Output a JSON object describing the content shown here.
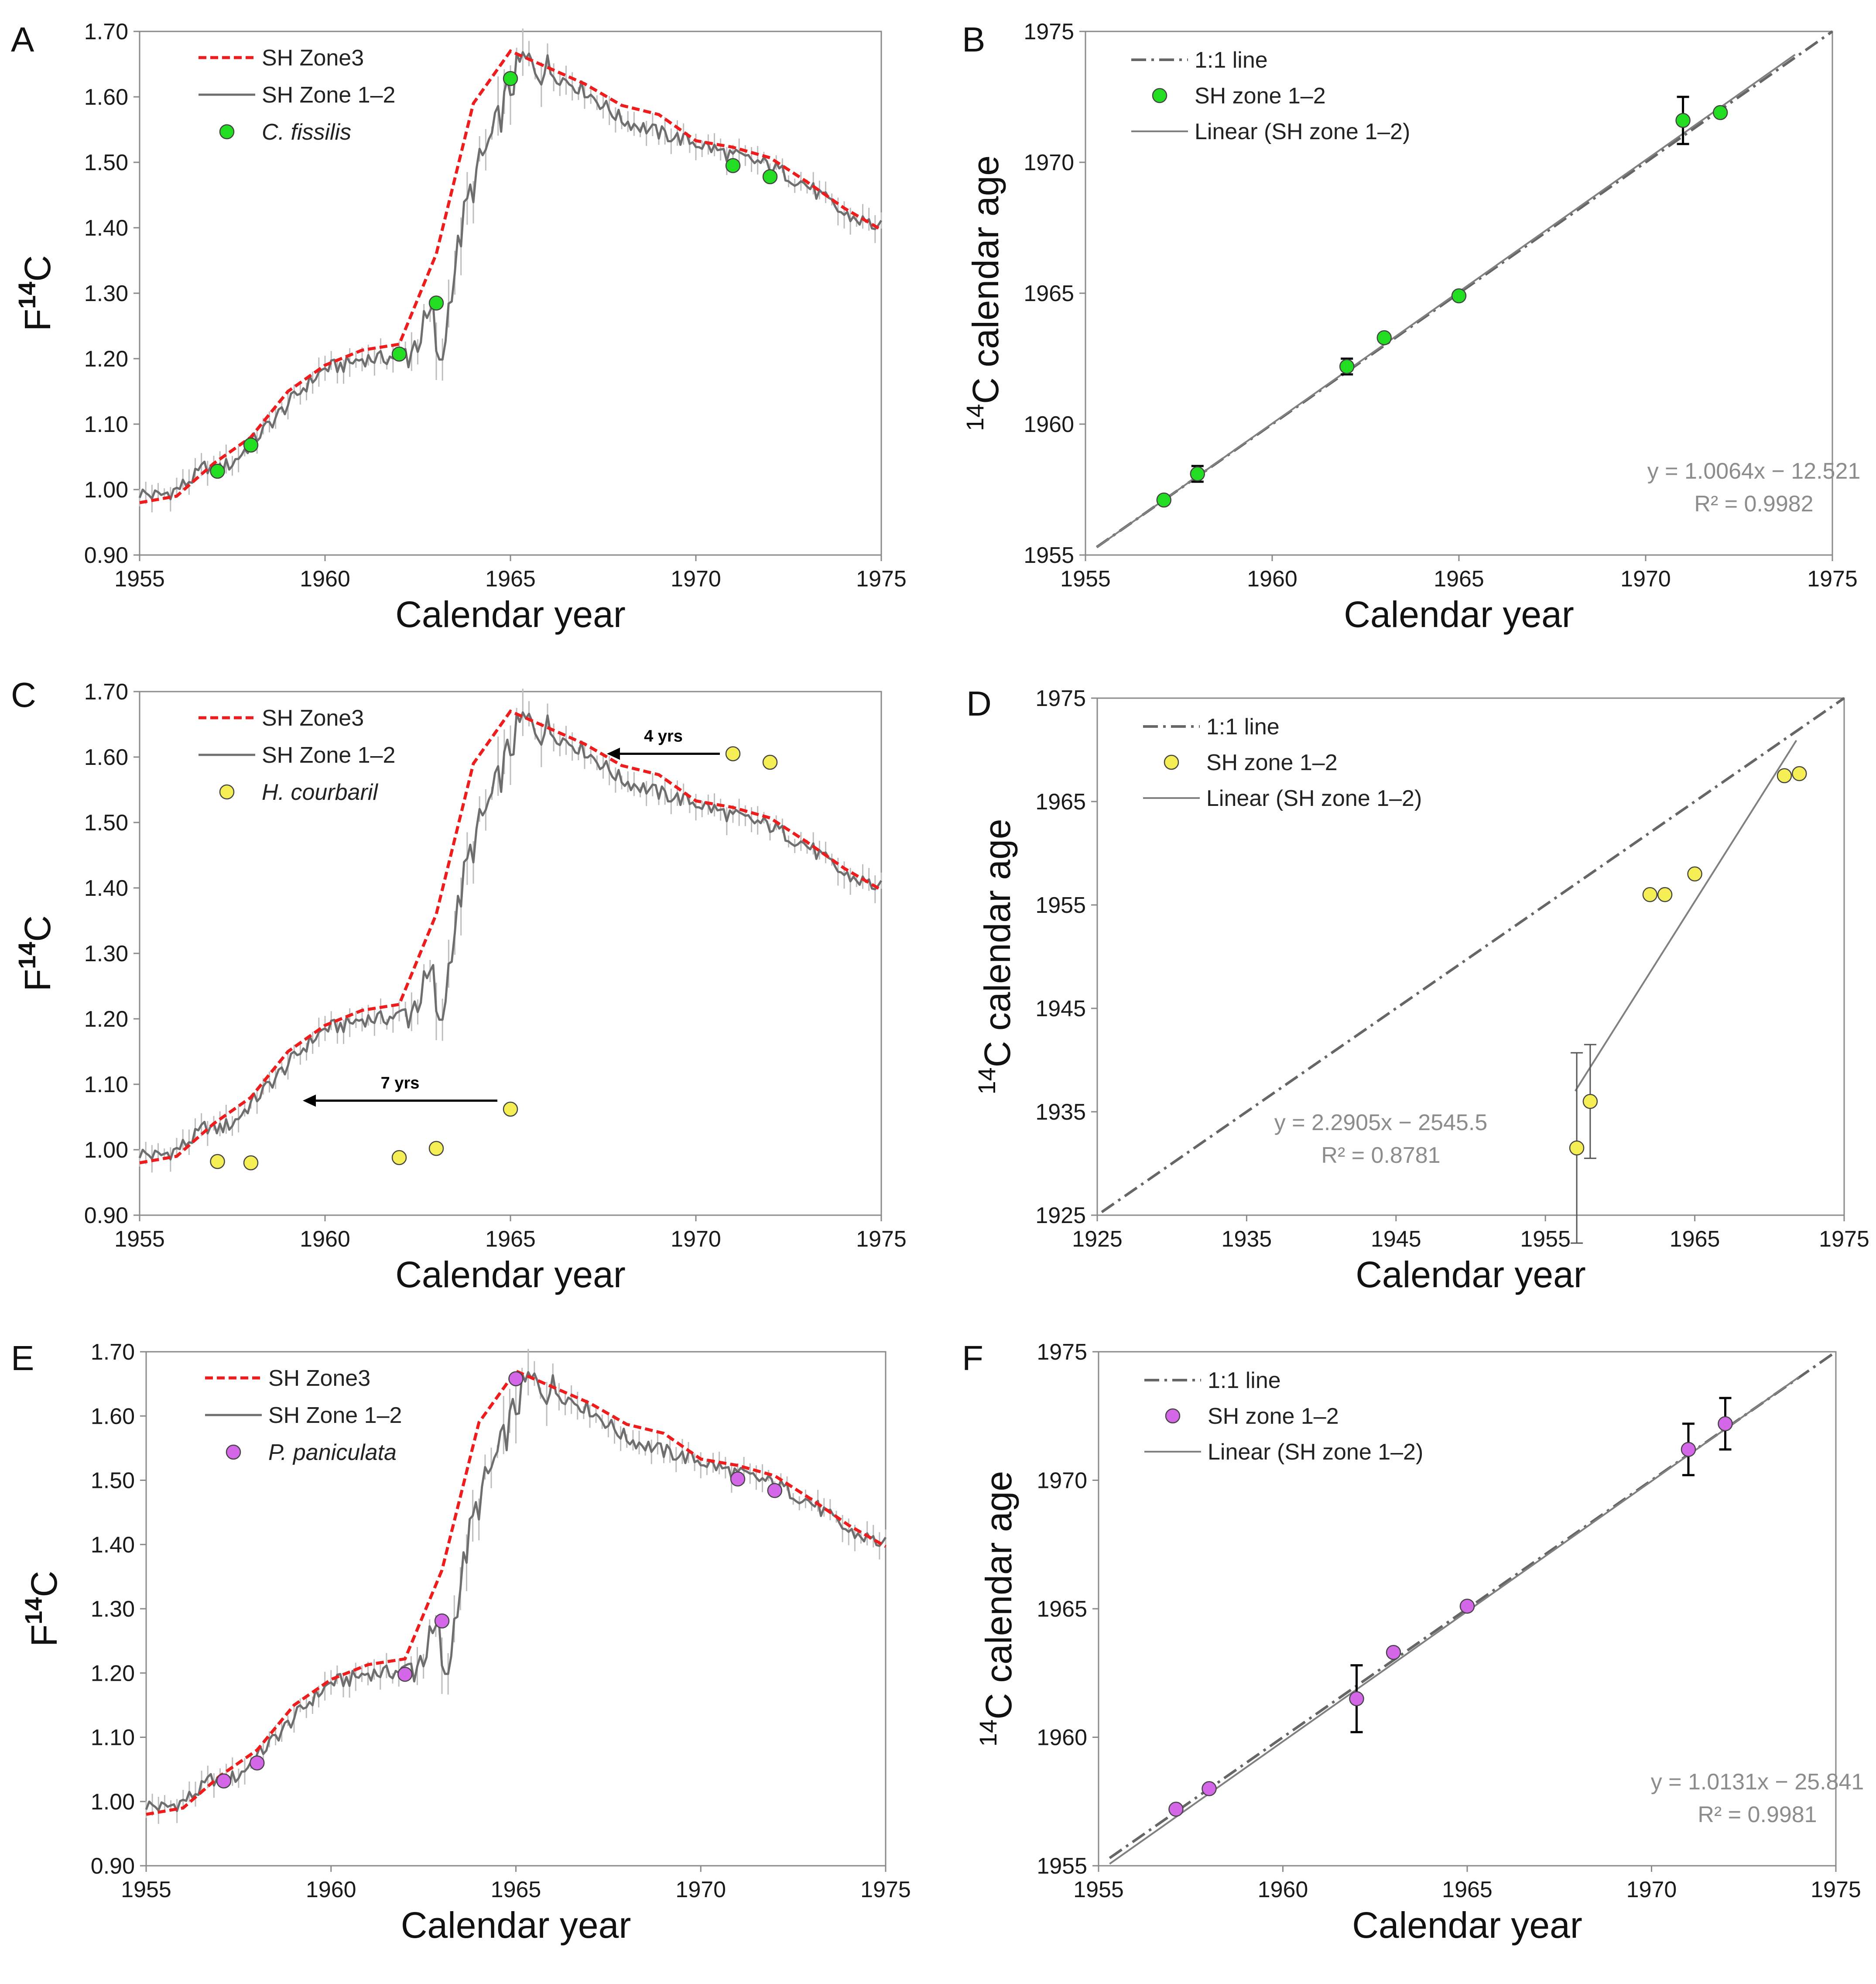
{
  "figure": {
    "panels": [
      {
        "letter": "A"
      },
      {
        "letter": "B"
      },
      {
        "letter": "C"
      },
      {
        "letter": "D"
      },
      {
        "letter": "E"
      },
      {
        "letter": "F"
      }
    ]
  },
  "colors": {
    "zone3": "#ee1c1c",
    "zone12": "#6e6e6e",
    "zone12_light": "#bdbdbd",
    "fissilis": "#22dd22",
    "courbaril": "#f5ee55",
    "paniculata": "#d466e8",
    "fit_text": "#8c8c8c"
  },
  "chart_data": [
    {
      "panel": "A",
      "type": "line",
      "title": "",
      "xlabel": "Calendar year",
      "ylabel_main": "F",
      "ylabel_sup": "14",
      "ylabel_tail": "C",
      "xlim": [
        1955,
        1975
      ],
      "ylim": [
        0.9,
        1.7
      ],
      "xticks": [
        "1955",
        "1960",
        "1965",
        "1970",
        "1975"
      ],
      "yticks": [
        "0.90",
        "1.00",
        "1.10",
        "1.20",
        "1.30",
        "1.40",
        "1.50",
        "1.60",
        "1.70"
      ],
      "legend_position": "top-left",
      "legend": [
        "SH Zone3",
        "SH Zone 1–2",
        "C. fissilis"
      ],
      "marker_color": "#22dd22",
      "series": [
        {
          "name": "SH Zone3",
          "style": "dashed-red",
          "x": [
            1955,
            1956,
            1957,
            1958,
            1959,
            1960,
            1961,
            1962,
            1963,
            1964,
            1965,
            1966,
            1967,
            1968,
            1969,
            1970,
            1971,
            1972,
            1973,
            1974,
            1975
          ],
          "y": [
            0.98,
            0.99,
            1.04,
            1.08,
            1.15,
            1.19,
            1.213,
            1.222,
            1.36,
            1.59,
            1.67,
            1.645,
            1.62,
            1.587,
            1.573,
            1.533,
            1.523,
            1.507,
            1.47,
            1.43,
            1.397
          ]
        },
        {
          "name": "SH Zone 1–2",
          "style": "noisy-gray",
          "x": [
            1955,
            1955.5,
            1956,
            1956.5,
            1956.8,
            1957,
            1957.5,
            1958,
            1958.5,
            1959,
            1959.5,
            1960,
            1960.5,
            1961,
            1961.5,
            1962,
            1962.3,
            1962.6,
            1962.9,
            1963.1,
            1963.4,
            1963.8,
            1964.2,
            1964.6,
            1964.9,
            1965.3,
            1966,
            1967,
            1968,
            1969,
            1970,
            1971,
            1972,
            1973,
            1974,
            1975
          ],
          "y": [
            0.995,
            0.99,
            1.0,
            1.02,
            1.037,
            1.03,
            1.04,
            1.07,
            1.1,
            1.13,
            1.16,
            1.185,
            1.19,
            1.2,
            1.2,
            1.205,
            1.21,
            1.24,
            1.27,
            1.17,
            1.31,
            1.43,
            1.5,
            1.55,
            1.6,
            1.655,
            1.64,
            1.61,
            1.565,
            1.545,
            1.53,
            1.51,
            1.495,
            1.465,
            1.42,
            1.4
          ]
        }
      ],
      "points": {
        "name": "C. fissilis",
        "x": [
          1957.1,
          1958.0,
          1962.0,
          1963.0,
          1965.0,
          1971.0,
          1972.0
        ],
        "y": [
          1.028,
          1.068,
          1.207,
          1.285,
          1.628,
          1.495,
          1.478
        ]
      },
      "annotations": []
    },
    {
      "panel": "B",
      "type": "scatter",
      "title": "",
      "xlabel": "Calendar year",
      "ylabel_sup": "14",
      "ylabel_tail": "C calendar age",
      "xlim": [
        1955,
        1975
      ],
      "ylim": [
        1955,
        1975
      ],
      "xticks": [
        "1955",
        "1960",
        "1965",
        "1970",
        "1975"
      ],
      "yticks": [
        "1955",
        "1960",
        "1965",
        "1970",
        "1975"
      ],
      "legend_position": "top-left",
      "legend": [
        "1:1 line",
        "SH zone 1–2",
        "Linear (SH zone 1–2)"
      ],
      "marker_color": "#22dd22",
      "points": {
        "x": [
          1957.1,
          1958.0,
          1962.0,
          1963.0,
          1965.0,
          1971.0,
          1972.0
        ],
        "y": [
          1957.1,
          1958.1,
          1962.2,
          1963.3,
          1964.9,
          1971.6,
          1971.9
        ],
        "err": [
          0,
          0.3,
          0.3,
          0,
          0,
          0.9,
          0
        ]
      },
      "fit": {
        "slope": 1.0064,
        "intercept": -12.521,
        "x_range": [
          1955.3,
          1974.0
        ]
      },
      "equation": "y = 1.0064x − 12.521",
      "r2": "R² = 0.9982"
    },
    {
      "panel": "C",
      "type": "line",
      "title": "",
      "xlabel": "Calendar year",
      "ylabel_main": "F",
      "ylabel_sup": "14",
      "ylabel_tail": "C",
      "xlim": [
        1955,
        1975
      ],
      "ylim": [
        0.9,
        1.7
      ],
      "xticks": [
        "1955",
        "1960",
        "1965",
        "1970",
        "1975"
      ],
      "yticks": [
        "0.90",
        "1.00",
        "1.10",
        "1.20",
        "1.30",
        "1.40",
        "1.50",
        "1.60",
        "1.70"
      ],
      "legend_position": "top-left",
      "legend": [
        "SH Zone3",
        "SH Zone 1–2",
        "H. courbaril"
      ],
      "marker_color": "#f5ee55",
      "series": [
        {
          "name": "SH Zone3",
          "style": "dashed-red",
          "x": [
            1955,
            1956,
            1957,
            1958,
            1959,
            1960,
            1961,
            1962,
            1963,
            1964,
            1965,
            1966,
            1967,
            1968,
            1969,
            1970,
            1971,
            1972,
            1973,
            1974,
            1975
          ],
          "y": [
            0.98,
            0.99,
            1.04,
            1.08,
            1.15,
            1.19,
            1.213,
            1.222,
            1.36,
            1.59,
            1.67,
            1.645,
            1.62,
            1.587,
            1.573,
            1.533,
            1.523,
            1.507,
            1.47,
            1.43,
            1.397
          ]
        },
        {
          "name": "SH Zone 1–2",
          "style": "noisy-gray",
          "x": [
            1955,
            1955.5,
            1956,
            1956.5,
            1956.8,
            1957,
            1957.5,
            1958,
            1958.5,
            1959,
            1959.5,
            1960,
            1960.5,
            1961,
            1961.5,
            1962,
            1962.3,
            1962.6,
            1962.9,
            1963.1,
            1963.4,
            1963.8,
            1964.2,
            1964.6,
            1964.9,
            1965.3,
            1966,
            1967,
            1968,
            1969,
            1970,
            1971,
            1972,
            1973,
            1974,
            1975
          ],
          "y": [
            0.995,
            0.99,
            1.0,
            1.02,
            1.037,
            1.03,
            1.04,
            1.07,
            1.1,
            1.13,
            1.16,
            1.185,
            1.19,
            1.2,
            1.2,
            1.205,
            1.21,
            1.24,
            1.27,
            1.17,
            1.31,
            1.43,
            1.5,
            1.55,
            1.6,
            1.655,
            1.64,
            1.61,
            1.565,
            1.545,
            1.53,
            1.51,
            1.495,
            1.465,
            1.42,
            1.4
          ]
        }
      ],
      "points": {
        "name": "H. courbaril",
        "x": [
          1957.1,
          1958.0,
          1962.0,
          1963.0,
          1965.0,
          1971.0,
          1972.0
        ],
        "y": [
          0.982,
          0.98,
          0.988,
          1.002,
          1.062,
          1.605,
          1.592
        ]
      },
      "annotations": [
        {
          "label": "4 yrs",
          "x_from": 1971,
          "x_to": 1967.6,
          "y": 1.605
        },
        {
          "label": "7 yrs",
          "x_from": 1965,
          "x_to": 1959.4,
          "y": 1.075
        }
      ]
    },
    {
      "panel": "D",
      "type": "scatter",
      "title": "",
      "xlabel": "Calendar year",
      "ylabel_sup": "14",
      "ylabel_tail": "C calendar age",
      "xlim": [
        1925,
        1975
      ],
      "ylim": [
        1925,
        1975
      ],
      "xticks": [
        "1925",
        "1935",
        "1945",
        "1955",
        "1965",
        "1975"
      ],
      "yticks": [
        "1925",
        "1935",
        "1945",
        "1955",
        "1965",
        "1975"
      ],
      "legend_position": "top-left",
      "legend": [
        "1:1 line",
        "SH zone 1–2",
        "Linear (SH zone 1–2)"
      ],
      "marker_color": "#f5ee55",
      "points": {
        "x": [
          1957.1,
          1958.0,
          1962.0,
          1963.0,
          1965.0,
          1971.0,
          1972.0
        ],
        "y": [
          1931.5,
          1936.0,
          1956.0,
          1956.0,
          1958.0,
          1967.5,
          1967.7
        ],
        "err": [
          9.2,
          5.5,
          0,
          0,
          0,
          0,
          0
        ]
      },
      "fit": {
        "slope": 2.2905,
        "intercept": -2545.5,
        "x_range": [
          1957.0,
          1971.8
        ]
      },
      "equation": "y = 2.2905x − 2545.5",
      "r2": "R² = 0.8781"
    },
    {
      "panel": "E",
      "type": "line",
      "title": "",
      "xlabel": "Calendar year",
      "ylabel_main": "F",
      "ylabel_sup": "14",
      "ylabel_tail": "C",
      "xlim": [
        1955,
        1975
      ],
      "ylim": [
        0.9,
        1.7
      ],
      "xticks": [
        "1955",
        "1960",
        "1965",
        "1970",
        "1975"
      ],
      "yticks": [
        "0.90",
        "1.00",
        "1.10",
        "1.20",
        "1.30",
        "1.40",
        "1.50",
        "1.60",
        "1.70"
      ],
      "legend_position": "top-left",
      "legend": [
        "SH Zone3",
        "SH Zone 1–2",
        "P. paniculata"
      ],
      "marker_color": "#d466e8",
      "series": [
        {
          "name": "SH Zone3",
          "style": "dashed-red",
          "x": [
            1955,
            1956,
            1957,
            1958,
            1959,
            1960,
            1961,
            1962,
            1963,
            1964,
            1965,
            1966,
            1967,
            1968,
            1969,
            1970,
            1971,
            1972,
            1973,
            1974,
            1975
          ],
          "y": [
            0.98,
            0.99,
            1.04,
            1.08,
            1.15,
            1.19,
            1.213,
            1.222,
            1.36,
            1.59,
            1.67,
            1.645,
            1.62,
            1.587,
            1.573,
            1.533,
            1.523,
            1.507,
            1.47,
            1.43,
            1.397
          ]
        },
        {
          "name": "SH Zone 1–2",
          "style": "noisy-gray",
          "x": [
            1955,
            1955.5,
            1956,
            1956.5,
            1956.8,
            1957,
            1957.5,
            1958,
            1958.5,
            1959,
            1959.5,
            1960,
            1960.5,
            1961,
            1961.5,
            1962,
            1962.3,
            1962.6,
            1962.9,
            1963.1,
            1963.4,
            1963.8,
            1964.2,
            1964.6,
            1964.9,
            1965.3,
            1966,
            1967,
            1968,
            1969,
            1970,
            1971,
            1972,
            1973,
            1974,
            1975
          ],
          "y": [
            0.995,
            0.99,
            1.0,
            1.02,
            1.037,
            1.03,
            1.04,
            1.07,
            1.1,
            1.13,
            1.16,
            1.185,
            1.19,
            1.2,
            1.2,
            1.205,
            1.21,
            1.24,
            1.27,
            1.17,
            1.31,
            1.43,
            1.5,
            1.55,
            1.6,
            1.655,
            1.64,
            1.61,
            1.565,
            1.545,
            1.53,
            1.51,
            1.495,
            1.465,
            1.42,
            1.4
          ]
        }
      ],
      "points": {
        "name": "P. paniculata",
        "x": [
          1957.1,
          1958.0,
          1962.0,
          1963.0,
          1965.0,
          1971.0,
          1972.0
        ],
        "y": [
          1.032,
          1.06,
          1.198,
          1.281,
          1.658,
          1.502,
          1.484
        ]
      },
      "annotations": []
    },
    {
      "panel": "F",
      "type": "scatter",
      "title": "",
      "xlabel": "Calendar year",
      "ylabel_sup": "14",
      "ylabel_tail": "C calendar age",
      "xlim": [
        1955,
        1975
      ],
      "ylim": [
        1955,
        1975
      ],
      "xticks": [
        "1955",
        "1960",
        "1965",
        "1970",
        "1975"
      ],
      "yticks": [
        "1955",
        "1960",
        "1965",
        "1970",
        "1975"
      ],
      "legend_position": "top-left",
      "legend": [
        "1:1 line",
        "SH zone 1–2",
        "Linear (SH zone 1–2)"
      ],
      "marker_color": "#d466e8",
      "points": {
        "x": [
          1957.1,
          1958.0,
          1962.0,
          1963.0,
          1965.0,
          1971.0,
          1972.0
        ],
        "y": [
          1957.2,
          1958.0,
          1961.5,
          1963.3,
          1965.1,
          1971.2,
          1972.2
        ],
        "err": [
          0,
          0,
          1.3,
          0,
          0,
          1.0,
          1.0
        ]
      },
      "fit": {
        "slope": 1.0131,
        "intercept": -25.841,
        "x_range": [
          1955.3,
          1974.0
        ]
      },
      "equation": "y = 1.0131x − 25.841",
      "r2": "R² = 0.9981"
    }
  ]
}
